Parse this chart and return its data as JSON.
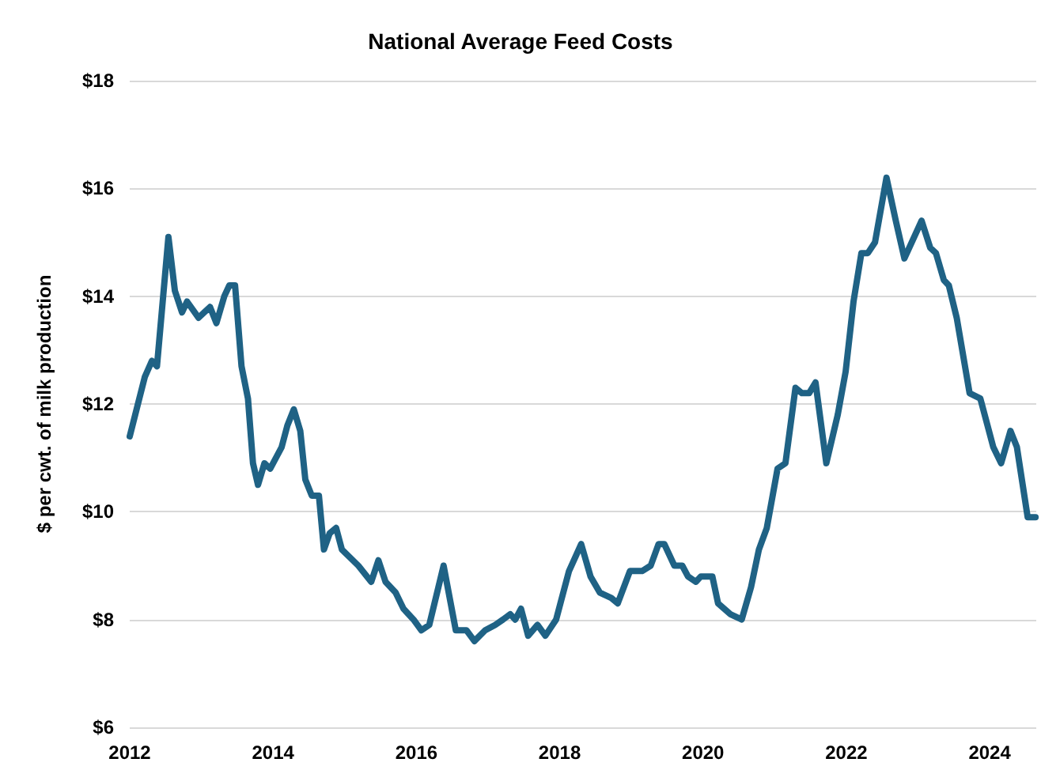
{
  "chart_data": {
    "type": "line",
    "title": "National Average Feed Costs",
    "ylabel": "$ per cwt. of milk production",
    "xlim": [
      2012,
      2024.65
    ],
    "xticks": [
      2012,
      2014,
      2016,
      2018,
      2020,
      2022,
      2024
    ],
    "ylim": [
      6,
      18
    ],
    "yticks": [
      {
        "value": 6,
        "label": "$6"
      },
      {
        "value": 8,
        "label": "$8"
      },
      {
        "value": 10,
        "label": "$10"
      },
      {
        "value": 12,
        "label": "$12"
      },
      {
        "value": 14,
        "label": "$14"
      },
      {
        "value": 16,
        "label": "$16"
      },
      {
        "value": 18,
        "label": "$18"
      }
    ],
    "grid": "y",
    "marker": "none",
    "line_style": "solid",
    "series": [
      {
        "color": "#1f6285",
        "x": [
          2012.0,
          2012.21,
          2012.31,
          2012.38,
          2012.54,
          2012.63,
          2012.73,
          2012.8,
          2012.96,
          2013.12,
          2013.21,
          2013.32,
          2013.39,
          2013.47,
          2013.56,
          2013.65,
          2013.72,
          2013.79,
          2013.88,
          2013.96,
          2014.12,
          2014.2,
          2014.29,
          2014.38,
          2014.45,
          2014.54,
          2014.64,
          2014.71,
          2014.79,
          2014.88,
          2014.96,
          2015.19,
          2015.37,
          2015.47,
          2015.57,
          2015.71,
          2015.82,
          2015.96,
          2016.07,
          2016.18,
          2016.38,
          2016.55,
          2016.7,
          2016.81,
          2016.96,
          2017.1,
          2017.21,
          2017.31,
          2017.38,
          2017.46,
          2017.56,
          2017.69,
          2017.8,
          2017.95,
          2018.13,
          2018.3,
          2018.43,
          2018.56,
          2018.72,
          2018.81,
          2018.98,
          2019.15,
          2019.27,
          2019.38,
          2019.46,
          2019.6,
          2019.71,
          2019.79,
          2019.9,
          2019.97,
          2020.13,
          2020.21,
          2020.38,
          2020.54,
          2020.67,
          2020.78,
          2020.89,
          2021.04,
          2021.15,
          2021.29,
          2021.38,
          2021.48,
          2021.57,
          2021.72,
          2021.88,
          2021.99,
          2022.1,
          2022.21,
          2022.3,
          2022.4,
          2022.56,
          2022.69,
          2022.81,
          2023.05,
          2023.17,
          2023.25,
          2023.36,
          2023.43,
          2023.54,
          2023.72,
          2023.87,
          2024.05,
          2024.16,
          2024.29,
          2024.38,
          2024.53,
          2024.64
        ],
        "values": [
          11.4,
          12.5,
          12.8,
          12.7,
          15.1,
          14.1,
          13.7,
          13.9,
          13.6,
          13.8,
          13.5,
          14.0,
          14.2,
          14.2,
          12.7,
          12.1,
          10.9,
          10.5,
          10.9,
          10.8,
          11.2,
          11.6,
          11.9,
          11.5,
          10.6,
          10.3,
          10.3,
          9.3,
          9.6,
          9.7,
          9.3,
          9.0,
          8.7,
          9.1,
          8.7,
          8.5,
          8.2,
          8.0,
          7.8,
          7.9,
          9.0,
          7.8,
          7.8,
          7.6,
          7.8,
          7.9,
          8.0,
          8.1,
          8.0,
          8.2,
          7.7,
          7.9,
          7.7,
          8.0,
          8.9,
          9.4,
          8.8,
          8.5,
          8.4,
          8.3,
          8.9,
          8.9,
          9.0,
          9.4,
          9.4,
          9.0,
          9.0,
          8.8,
          8.7,
          8.8,
          8.8,
          8.3,
          8.1,
          8.0,
          8.6,
          9.3,
          9.7,
          10.8,
          10.9,
          12.3,
          12.2,
          12.2,
          12.4,
          10.9,
          11.8,
          12.6,
          13.9,
          14.8,
          14.8,
          15.0,
          16.2,
          15.4,
          14.7,
          15.4,
          14.9,
          14.8,
          14.3,
          14.2,
          13.6,
          12.2,
          12.1,
          11.2,
          10.9,
          11.5,
          11.2,
          9.9,
          9.9
        ]
      }
    ]
  }
}
